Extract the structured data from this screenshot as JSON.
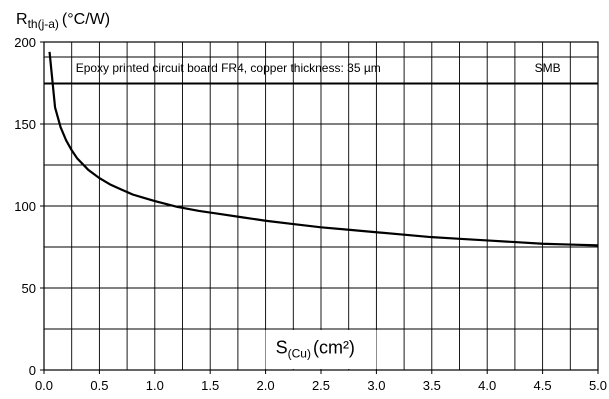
{
  "chart_data": {
    "type": "line",
    "title": "",
    "ylabel": {
      "main": "R",
      "sub": "th(j-a)",
      "unit": "(°C/W)"
    },
    "xlabel": {
      "main": "S",
      "sub": "(Cu)",
      "unit": "(cm²)"
    },
    "annotation": "Epoxy printed circuit board FR4, copper thickness: 35 µm",
    "package_label": "SMB",
    "xlim": [
      0.0,
      5.0
    ],
    "ylim": [
      0,
      200
    ],
    "x_ticks": [
      "0.0",
      "0.5",
      "1.0",
      "1.5",
      "2.0",
      "2.5",
      "3.0",
      "3.5",
      "4.0",
      "4.5",
      "5.0"
    ],
    "y_ticks": [
      "0",
      "50",
      "100",
      "150",
      "200"
    ],
    "grid": true,
    "series": [
      {
        "x": [
          0.05,
          0.1,
          0.15,
          0.2,
          0.25,
          0.3,
          0.4,
          0.5,
          0.6,
          0.7,
          0.8,
          0.9,
          1.0,
          1.2,
          1.4,
          1.6,
          1.8,
          2.0,
          2.25,
          2.5,
          2.75,
          3.0,
          3.25,
          3.5,
          3.75,
          4.0,
          4.25,
          4.5,
          4.75,
          5.0
        ],
        "y": [
          194,
          160,
          148,
          140,
          134,
          129,
          122,
          117,
          113,
          110,
          107,
          105,
          103,
          99.5,
          97,
          95,
          93,
          91,
          89,
          87,
          85.5,
          84,
          82.5,
          81,
          80,
          79,
          78,
          77,
          76.5,
          76
        ]
      }
    ]
  }
}
